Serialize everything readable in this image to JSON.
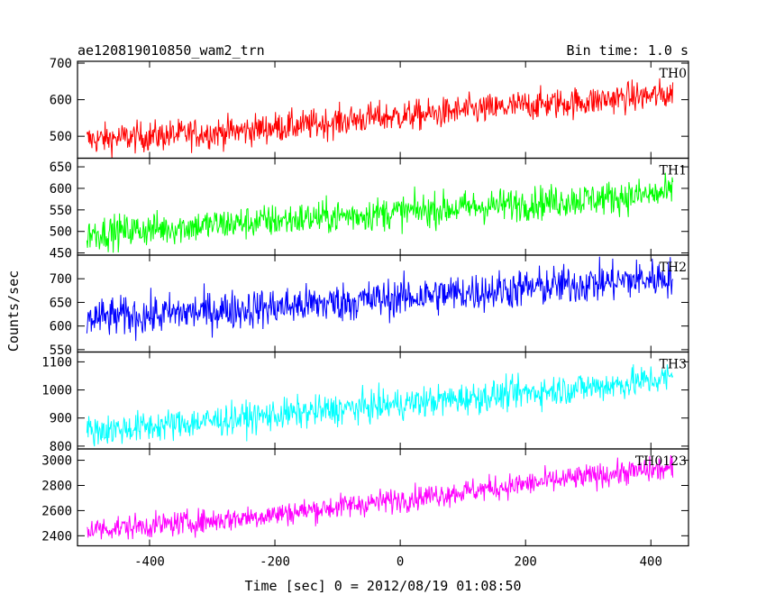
{
  "chart_data": {
    "type": "line",
    "title": "ae120819010850_wam2_trn",
    "subtitle": "Bin time: 1.0 s",
    "xlabel": "Time [sec] 0 = 2012/08/19 01:08:50",
    "ylabel": "Counts/sec",
    "xlim": [
      -515,
      460
    ],
    "x_ticks": [
      -400,
      -200,
      0,
      200,
      400
    ],
    "x": [
      -500,
      -450,
      -400,
      -350,
      -300,
      -250,
      -200,
      -150,
      -100,
      -50,
      0,
      50,
      100,
      150,
      200,
      250,
      300,
      350,
      400,
      435
    ],
    "panels": [
      {
        "name": "TH0",
        "color": "#ff0000",
        "ylim": [
          440,
          705
        ],
        "y_ticks": [
          500,
          600,
          700
        ],
        "values": [
          490,
          495,
          500,
          505,
          510,
          515,
          525,
          530,
          540,
          550,
          555,
          560,
          570,
          575,
          585,
          590,
          595,
          605,
          610,
          615
        ],
        "noise": 30
      },
      {
        "name": "TH1",
        "color": "#00ff00",
        "ylim": [
          445,
          670
        ],
        "y_ticks": [
          450,
          500,
          550,
          600,
          650
        ],
        "values": [
          495,
          500,
          505,
          510,
          515,
          520,
          525,
          530,
          535,
          540,
          545,
          550,
          555,
          560,
          565,
          570,
          575,
          580,
          585,
          590
        ],
        "noise": 28
      },
      {
        "name": "TH2",
        "color": "#0000ff",
        "ylim": [
          545,
          750
        ],
        "y_ticks": [
          550,
          600,
          650,
          700
        ],
        "values": [
          615,
          620,
          622,
          628,
          632,
          636,
          640,
          645,
          650,
          655,
          660,
          665,
          670,
          675,
          680,
          685,
          690,
          695,
          700,
          705
        ],
        "noise": 30
      },
      {
        "name": "TH3",
        "color": "#00ffff",
        "ylim": [
          790,
          1135
        ],
        "y_ticks": [
          800,
          900,
          1000,
          1100
        ],
        "values": [
          855,
          860,
          870,
          880,
          890,
          900,
          910,
          920,
          930,
          940,
          950,
          960,
          970,
          980,
          990,
          1000,
          1010,
          1020,
          1035,
          1045
        ],
        "noise": 40
      },
      {
        "name": "TH0123",
        "color": "#ff00ff",
        "ylim": [
          2320,
          3090
        ],
        "y_ticks": [
          2400,
          2600,
          2800,
          3000
        ],
        "values": [
          2450,
          2465,
          2480,
          2500,
          2520,
          2545,
          2570,
          2600,
          2630,
          2660,
          2690,
          2720,
          2750,
          2780,
          2810,
          2840,
          2870,
          2900,
          2920,
          2935
        ],
        "noise": 70
      }
    ]
  }
}
